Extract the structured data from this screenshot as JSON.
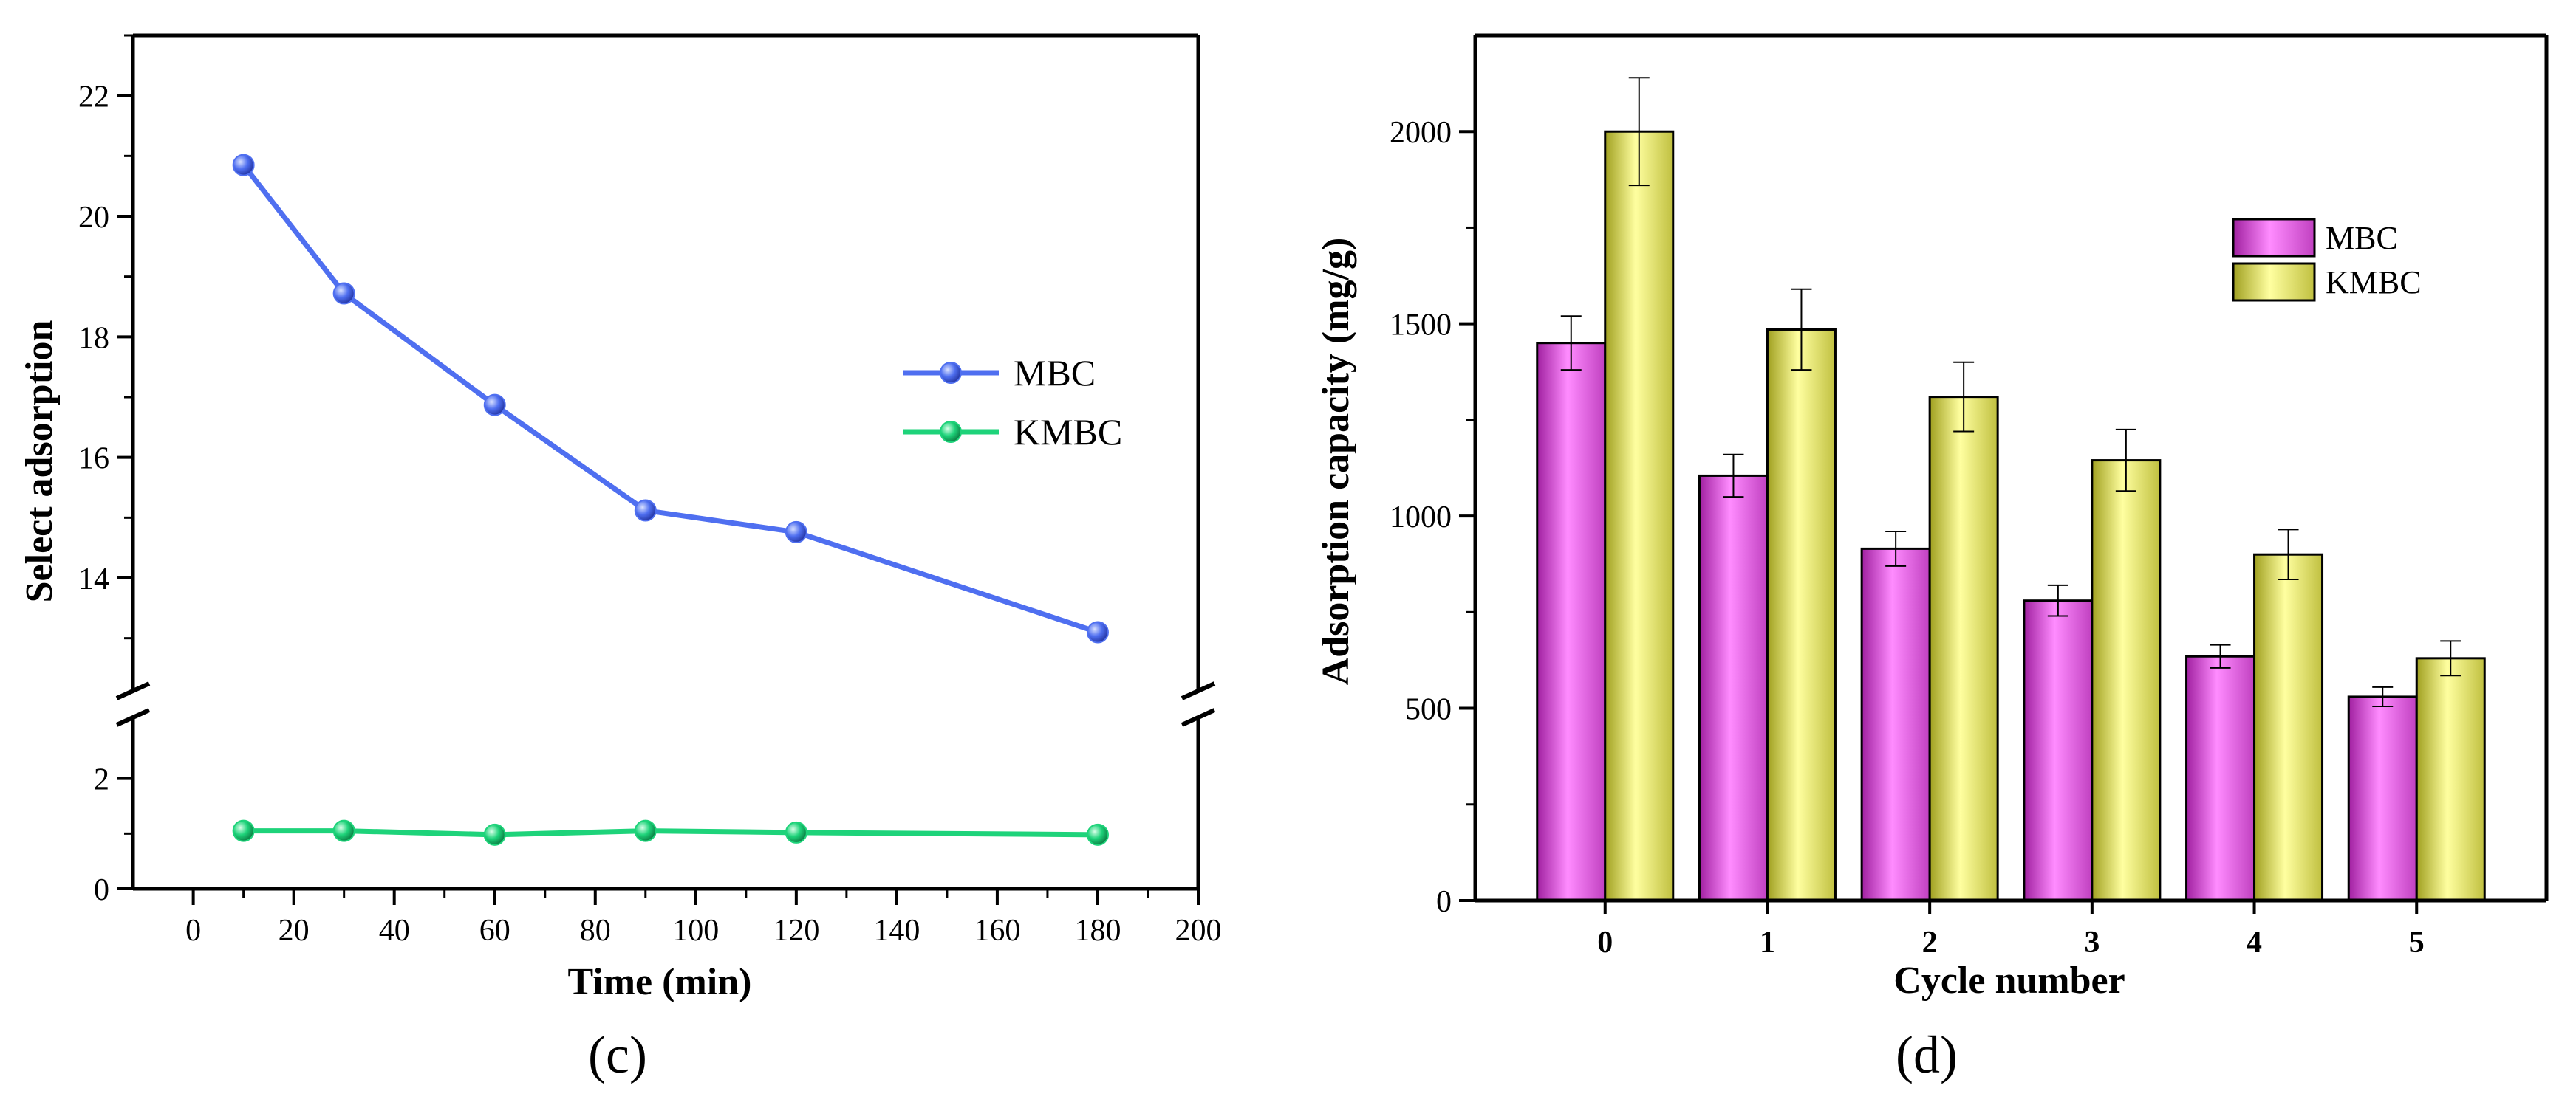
{
  "chart_data": [
    {
      "type": "line",
      "panel_label": "(c)",
      "xlabel": "Time (min)",
      "ylabel": "Select adsorption",
      "xlim": [
        -12,
        200
      ],
      "xticks": [
        0,
        20,
        40,
        60,
        80,
        100,
        120,
        140,
        160,
        180,
        200
      ],
      "y_broken_axis": true,
      "y_upper_range": [
        12.2,
        23
      ],
      "y_upper_ticks": [
        14,
        16,
        18,
        20,
        22
      ],
      "y_lower_range": [
        0,
        3.0
      ],
      "y_lower_ticks": [
        0,
        2
      ],
      "legend_position": "right",
      "x": [
        10,
        30,
        60,
        90,
        120,
        180
      ],
      "series": [
        {
          "name": "MBC",
          "color": "#4f6ff0",
          "values": [
            20.85,
            18.72,
            16.87,
            15.12,
            14.76,
            13.1
          ]
        },
        {
          "name": "KMBC",
          "color": "#1ed37a",
          "values": [
            1.05,
            1.05,
            0.98,
            1.05,
            1.02,
            0.98
          ]
        }
      ]
    },
    {
      "type": "bar",
      "panel_label": "(d)",
      "xlabel": "Cycle number",
      "ylabel": "Adsorption capacity (mg/g)",
      "ylim": [
        0,
        2250
      ],
      "yticks": [
        0,
        500,
        1000,
        1500,
        2000
      ],
      "categories": [
        "0",
        "1",
        "2",
        "3",
        "4",
        "5"
      ],
      "legend_position": "top-right",
      "series": [
        {
          "name": "MBC",
          "color": "#f070f0",
          "values": [
            1450,
            1105,
            915,
            780,
            635,
            530
          ],
          "errors": [
            70,
            55,
            45,
            40,
            30,
            25
          ]
        },
        {
          "name": "KMBC",
          "color": "#ecec60",
          "values": [
            2000,
            1485,
            1310,
            1145,
            900,
            630
          ],
          "errors": [
            140,
            105,
            90,
            80,
            65,
            45
          ]
        }
      ]
    }
  ]
}
